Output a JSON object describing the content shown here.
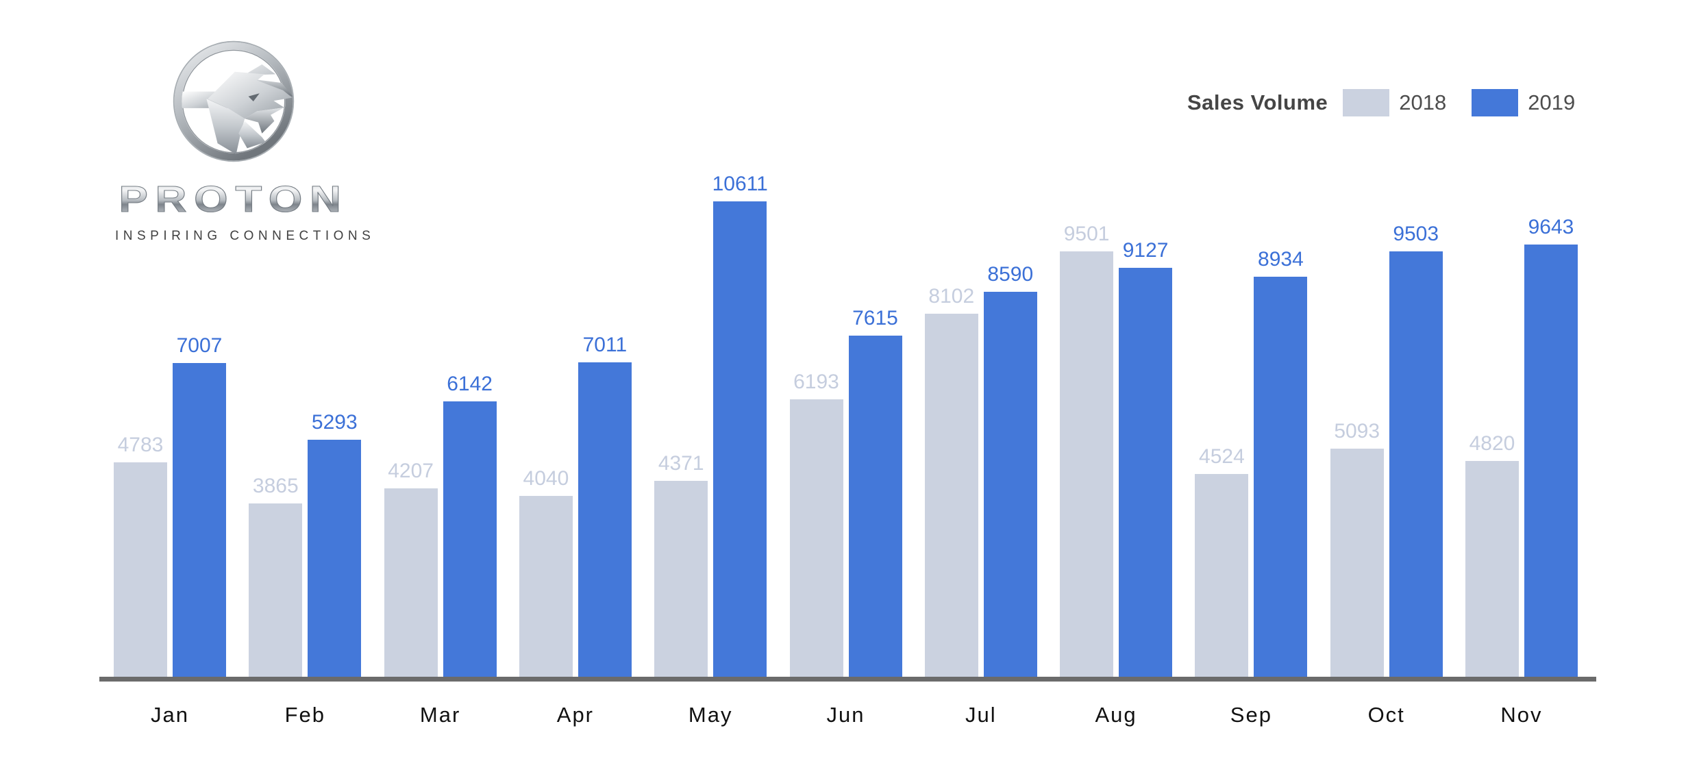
{
  "brand": {
    "emblem_icon": "proton-tiger-emblem",
    "wordmark": "PROTON",
    "tagline": "INSPIRING CONNECTIONS"
  },
  "legend": {
    "title": "Sales Volume",
    "items": [
      {
        "label": "2018",
        "swatch_color": "#cbd2e0"
      },
      {
        "label": "2019",
        "swatch_color": "#4478d9"
      }
    ]
  },
  "chart_data": {
    "type": "bar",
    "title": "Sales Volume",
    "categories": [
      "Jan",
      "Feb",
      "Mar",
      "Apr",
      "May",
      "Jun",
      "Jul",
      "Aug",
      "Sep",
      "Oct",
      "Nov"
    ],
    "series": [
      {
        "name": "2018",
        "color": "#cbd2e0",
        "label_color": "#c5cdde",
        "values": [
          4783,
          3865,
          4207,
          4040,
          4371,
          6193,
          8102,
          9501,
          4524,
          5093,
          4820
        ]
      },
      {
        "name": "2019",
        "color": "#4478d9",
        "label_color": "#3b70d7",
        "values": [
          7007,
          5293,
          6142,
          7011,
          10611,
          7615,
          8590,
          9127,
          8934,
          9503,
          9643
        ]
      }
    ],
    "value_labels_visible": true,
    "xlabel": "",
    "ylabel": "",
    "ylim": [
      0,
      10611
    ],
    "grid": false,
    "legend_position": "top-right",
    "axis_line_color": "#6b6b6b",
    "month_label_color": "#111111"
  }
}
